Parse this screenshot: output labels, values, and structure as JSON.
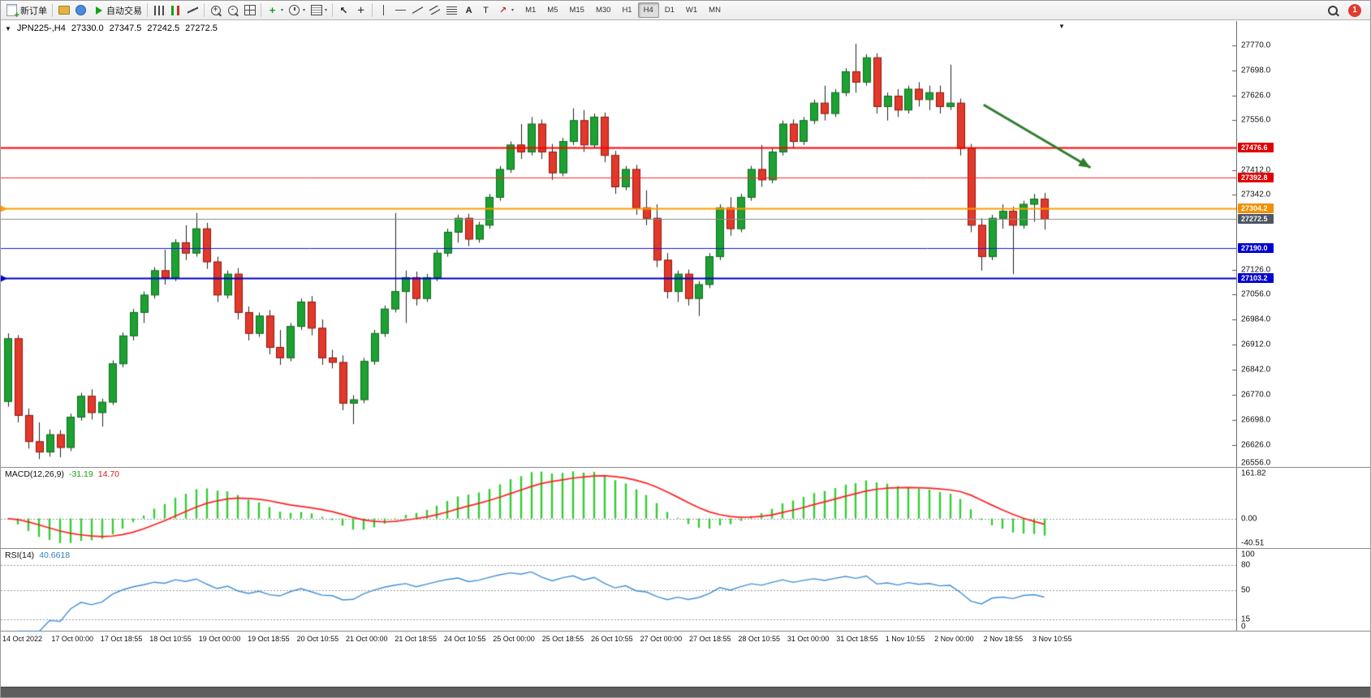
{
  "toolbar": {
    "items": [
      {
        "type": "button",
        "name": "new-order",
        "icon": "new-order-icon",
        "label": "新订单"
      },
      {
        "type": "separator"
      },
      {
        "type": "button",
        "name": "profiles",
        "icon": "profiles-icon"
      },
      {
        "type": "button",
        "name": "market-watch",
        "icon": "market-watch-icon"
      },
      {
        "type": "button",
        "name": "auto-trading",
        "icon": "autotrade-play-icon",
        "label": "自动交易"
      },
      {
        "type": "separator"
      },
      {
        "type": "button",
        "name": "bar-chart-mode",
        "icon": "bar-chart-icon"
      },
      {
        "type": "button",
        "name": "candlestick-mode",
        "icon": "candle-chart-icon"
      },
      {
        "type": "button",
        "name": "line-chart-mode",
        "icon": "line-chart-icon"
      },
      {
        "type": "separator"
      },
      {
        "type": "button",
        "name": "zoom-in",
        "icon": "zoom-in-icon"
      },
      {
        "type": "button",
        "name": "zoom-out",
        "icon": "zoom-out-icon"
      },
      {
        "type": "button",
        "name": "tile-windows",
        "icon": "tile-windows-icon"
      },
      {
        "type": "separator"
      },
      {
        "type": "button",
        "name": "indicators",
        "icon": "indicators-icon",
        "caret": true
      },
      {
        "type": "button",
        "name": "periods",
        "icon": "clock-icon",
        "caret": true
      },
      {
        "type": "button",
        "name": "templates",
        "icon": "template-icon",
        "caret": true
      },
      {
        "type": "separator"
      },
      {
        "type": "button",
        "name": "cursor",
        "icon": "cursor-icon"
      },
      {
        "type": "button",
        "name": "crosshair",
        "icon": "crosshair-icon"
      },
      {
        "type": "separator"
      },
      {
        "type": "button",
        "name": "vertical-line",
        "icon": "vertical-line-icon"
      },
      {
        "type": "button",
        "name": "horizontal-line",
        "icon": "horizontal-line-icon"
      },
      {
        "type": "button",
        "name": "trendline",
        "icon": "trendline-icon"
      },
      {
        "type": "button",
        "name": "equidistant-channel",
        "icon": "channel-icon"
      },
      {
        "type": "button",
        "name": "fibonacci",
        "icon": "fibonacci-icon"
      },
      {
        "type": "button",
        "name": "text",
        "icon": "text-icon"
      },
      {
        "type": "button",
        "name": "text-label",
        "icon": "text-label-icon"
      },
      {
        "type": "button",
        "name": "arrows",
        "icon": "arrows-icon",
        "caret": true
      }
    ],
    "timeframes": {
      "items": [
        "M1",
        "M5",
        "M15",
        "M30",
        "H1",
        "H4",
        "D1",
        "W1",
        "MN"
      ],
      "active": "H4"
    },
    "notification_count": "1"
  },
  "chart": {
    "header": {
      "symbol": "JPN225-,H4",
      "open": "27330.0",
      "high": "27347.5",
      "low": "27242.5",
      "close": "27272.5"
    },
    "colors": {
      "up": "#1ca132",
      "up_border": "#0c6b1d",
      "down": "#e2392b",
      "down_border": "#8f150c",
      "wick": "#222222",
      "macd_hist": "#33cc33",
      "macd_signal": "#ff1f1f",
      "rsi_line": "#3f8fd6",
      "arrow": "#2d7d2d",
      "current_price_line": "#777777"
    },
    "price_axis_labels": [
      "27770.0",
      "27698.0",
      "27626.0",
      "27556.0",
      "27412.0",
      "27342.0",
      "27126.0",
      "27056.0",
      "26984.0",
      "26912.0",
      "26842.0",
      "26770.0",
      "26698.0",
      "26626.0",
      "26556.0"
    ],
    "hlines": [
      {
        "name": "resistance-line-1",
        "price": 27476.6,
        "label": "27476.6",
        "color": "#ff0000",
        "width": 2,
        "tag_bg": "#e00000"
      },
      {
        "name": "resistance-line-2",
        "price": 27392.8,
        "label": "27392.8",
        "color": "#ff2222",
        "width": 1,
        "tag_bg": "#e00000"
      },
      {
        "name": "pivot-line-orange",
        "price": 27304.2,
        "label": "27304.2",
        "color": "#ff9c00",
        "width": 2,
        "tag_bg": "#f09000",
        "left_marker": true
      },
      {
        "name": "current-price-line",
        "price": 27272.5,
        "label": "27272.5",
        "color": "#888888",
        "width": 1,
        "tag_bg": "#4d5663"
      },
      {
        "name": "support-line-1",
        "price": 27190.0,
        "label": "27190.0",
        "color": "#1414e0",
        "width": 1,
        "tag_bg": "#0000d0"
      },
      {
        "name": "support-line-2",
        "price": 27103.2,
        "label": "27103.2",
        "color": "#0000c0",
        "width": 2,
        "tag_bg": "#0000d0",
        "left_marker": true
      }
    ],
    "arrow": {
      "from": {
        "bar": 93.2,
        "price": 27600
      },
      "to": {
        "bar": 103.4,
        "price": 27420
      },
      "color": "#2d7d2d"
    },
    "time_axis": [
      "14 Oct 2022",
      "17 Oct 00:00",
      "17 Oct 18:55",
      "18 Oct 10:55",
      "19 Oct 00:00",
      "19 Oct 18:55",
      "20 Oct 10:55",
      "21 Oct 00:00",
      "21 Oct 18:55",
      "24 Oct 10:55",
      "25 Oct 00:00",
      "25 Oct 18:55",
      "26 Oct 10:55",
      "27 Oct 00:00",
      "27 Oct 18:55",
      "28 Oct 10:55",
      "31 Oct 00:00",
      "31 Oct 18:55",
      "1 Nov 10:55",
      "2 Nov 00:00",
      "2 Nov 18:55",
      "3 Nov 10:55"
    ]
  },
  "macd": {
    "label": "MACD(12,26,9)",
    "value_main": "-31.19",
    "value_signal": "14.70",
    "axis": [
      "161.82",
      "0.00",
      "-40.51"
    ]
  },
  "rsi": {
    "label": "RSI(14)",
    "value": "40.6618",
    "axis_labels": [
      100,
      80,
      50,
      15,
      0
    ],
    "levels": [
      80,
      50,
      15
    ]
  },
  "chart_data": {
    "type": "candlestick",
    "symbol": "JPN225-",
    "timeframe": "H4",
    "price_range": [
      26560,
      27840
    ],
    "ohlc": [
      [
        26750,
        26945,
        26735,
        26930
      ],
      [
        26930,
        26940,
        26690,
        26710
      ],
      [
        26710,
        26730,
        26615,
        26635
      ],
      [
        26635,
        26690,
        26585,
        26605
      ],
      [
        26605,
        26670,
        26592,
        26655
      ],
      [
        26655,
        26668,
        26590,
        26618
      ],
      [
        26618,
        26715,
        26608,
        26705
      ],
      [
        26705,
        26775,
        26695,
        26765
      ],
      [
        26765,
        26785,
        26698,
        26718
      ],
      [
        26718,
        26758,
        26678,
        26748
      ],
      [
        26748,
        26868,
        26740,
        26858
      ],
      [
        26858,
        26948,
        26848,
        26938
      ],
      [
        26938,
        27015,
        26925,
        27005
      ],
      [
        27005,
        27065,
        26975,
        27055
      ],
      [
        27055,
        27135,
        27045,
        27125
      ],
      [
        27125,
        27185,
        27085,
        27105
      ],
      [
        27105,
        27215,
        27095,
        27205
      ],
      [
        27205,
        27255,
        27155,
        27175
      ],
      [
        27175,
        27290,
        27165,
        27245
      ],
      [
        27245,
        27262,
        27130,
        27150
      ],
      [
        27150,
        27165,
        27035,
        27055
      ],
      [
        27055,
        27125,
        27045,
        27115
      ],
      [
        27115,
        27132,
        26985,
        27005
      ],
      [
        27005,
        27022,
        26925,
        26945
      ],
      [
        26945,
        27005,
        26935,
        26995
      ],
      [
        26995,
        27012,
        26885,
        26905
      ],
      [
        26905,
        26955,
        26855,
        26875
      ],
      [
        26875,
        26975,
        26865,
        26965
      ],
      [
        26965,
        27045,
        26955,
        27035
      ],
      [
        27035,
        27052,
        26940,
        26960
      ],
      [
        26960,
        26985,
        26855,
        26875
      ],
      [
        26875,
        26898,
        26845,
        26862
      ],
      [
        26862,
        26882,
        26725,
        26745
      ],
      [
        26745,
        26768,
        26685,
        26755
      ],
      [
        26755,
        26875,
        26745,
        26865
      ],
      [
        26865,
        26955,
        26855,
        26945
      ],
      [
        26945,
        27025,
        26935,
        27015
      ],
      [
        27015,
        27290,
        27005,
        27065
      ],
      [
        27065,
        27125,
        26975,
        27105
      ],
      [
        27105,
        27122,
        27025,
        27045
      ],
      [
        27045,
        27115,
        27035,
        27105
      ],
      [
        27105,
        27185,
        27095,
        27175
      ],
      [
        27175,
        27245,
        27165,
        27235
      ],
      [
        27235,
        27285,
        27205,
        27275
      ],
      [
        27275,
        27288,
        27195,
        27215
      ],
      [
        27215,
        27265,
        27205,
        27255
      ],
      [
        27255,
        27345,
        27245,
        27335
      ],
      [
        27335,
        27425,
        27325,
        27415
      ],
      [
        27415,
        27495,
        27405,
        27485
      ],
      [
        27485,
        27545,
        27445,
        27465
      ],
      [
        27465,
        27565,
        27455,
        27545
      ],
      [
        27545,
        27558,
        27445,
        27465
      ],
      [
        27465,
        27488,
        27385,
        27405
      ],
      [
        27405,
        27505,
        27395,
        27495
      ],
      [
        27495,
        27590,
        27485,
        27555
      ],
      [
        27555,
        27585,
        27465,
        27485
      ],
      [
        27485,
        27575,
        27475,
        27565
      ],
      [
        27565,
        27578,
        27435,
        27455
      ],
      [
        27455,
        27468,
        27345,
        27365
      ],
      [
        27365,
        27425,
        27355,
        27415
      ],
      [
        27415,
        27428,
        27285,
        27305
      ],
      [
        27305,
        27355,
        27255,
        27275
      ],
      [
        27275,
        27315,
        27135,
        27155
      ],
      [
        27155,
        27175,
        27045,
        27065
      ],
      [
        27065,
        27125,
        27035,
        27115
      ],
      [
        27115,
        27128,
        27025,
        27045
      ],
      [
        27045,
        27095,
        26995,
        27085
      ],
      [
        27085,
        27175,
        27075,
        27165
      ],
      [
        27165,
        27315,
        27155,
        27305
      ],
      [
        27305,
        27335,
        27225,
        27245
      ],
      [
        27245,
        27345,
        27235,
        27335
      ],
      [
        27335,
        27425,
        27325,
        27415
      ],
      [
        27415,
        27485,
        27365,
        27385
      ],
      [
        27385,
        27475,
        27375,
        27465
      ],
      [
        27465,
        27555,
        27455,
        27545
      ],
      [
        27545,
        27558,
        27475,
        27495
      ],
      [
        27495,
        27565,
        27485,
        27555
      ],
      [
        27555,
        27615,
        27545,
        27605
      ],
      [
        27605,
        27655,
        27555,
        27575
      ],
      [
        27575,
        27645,
        27565,
        27635
      ],
      [
        27635,
        27705,
        27625,
        27695
      ],
      [
        27695,
        27775,
        27635,
        27665
      ],
      [
        27665,
        27745,
        27655,
        27735
      ],
      [
        27735,
        27748,
        27575,
        27595
      ],
      [
        27595,
        27635,
        27555,
        27625
      ],
      [
        27625,
        27645,
        27565,
        27585
      ],
      [
        27585,
        27655,
        27575,
        27645
      ],
      [
        27645,
        27665,
        27595,
        27615
      ],
      [
        27615,
        27655,
        27585,
        27635
      ],
      [
        27635,
        27655,
        27575,
        27595
      ],
      [
        27595,
        27715,
        27585,
        27605
      ],
      [
        27605,
        27618,
        27455,
        27475
      ],
      [
        27475,
        27488,
        27235,
        27255
      ],
      [
        27255,
        27275,
        27125,
        27165
      ],
      [
        27165,
        27285,
        27155,
        27275
      ],
      [
        27275,
        27315,
        27245,
        27295
      ],
      [
        27295,
        27308,
        27115,
        27255
      ],
      [
        27255,
        27325,
        27245,
        27315
      ],
      [
        27315,
        27345,
        27265,
        27330
      ],
      [
        27330,
        27347.5,
        27242.5,
        27272.5
      ]
    ]
  }
}
